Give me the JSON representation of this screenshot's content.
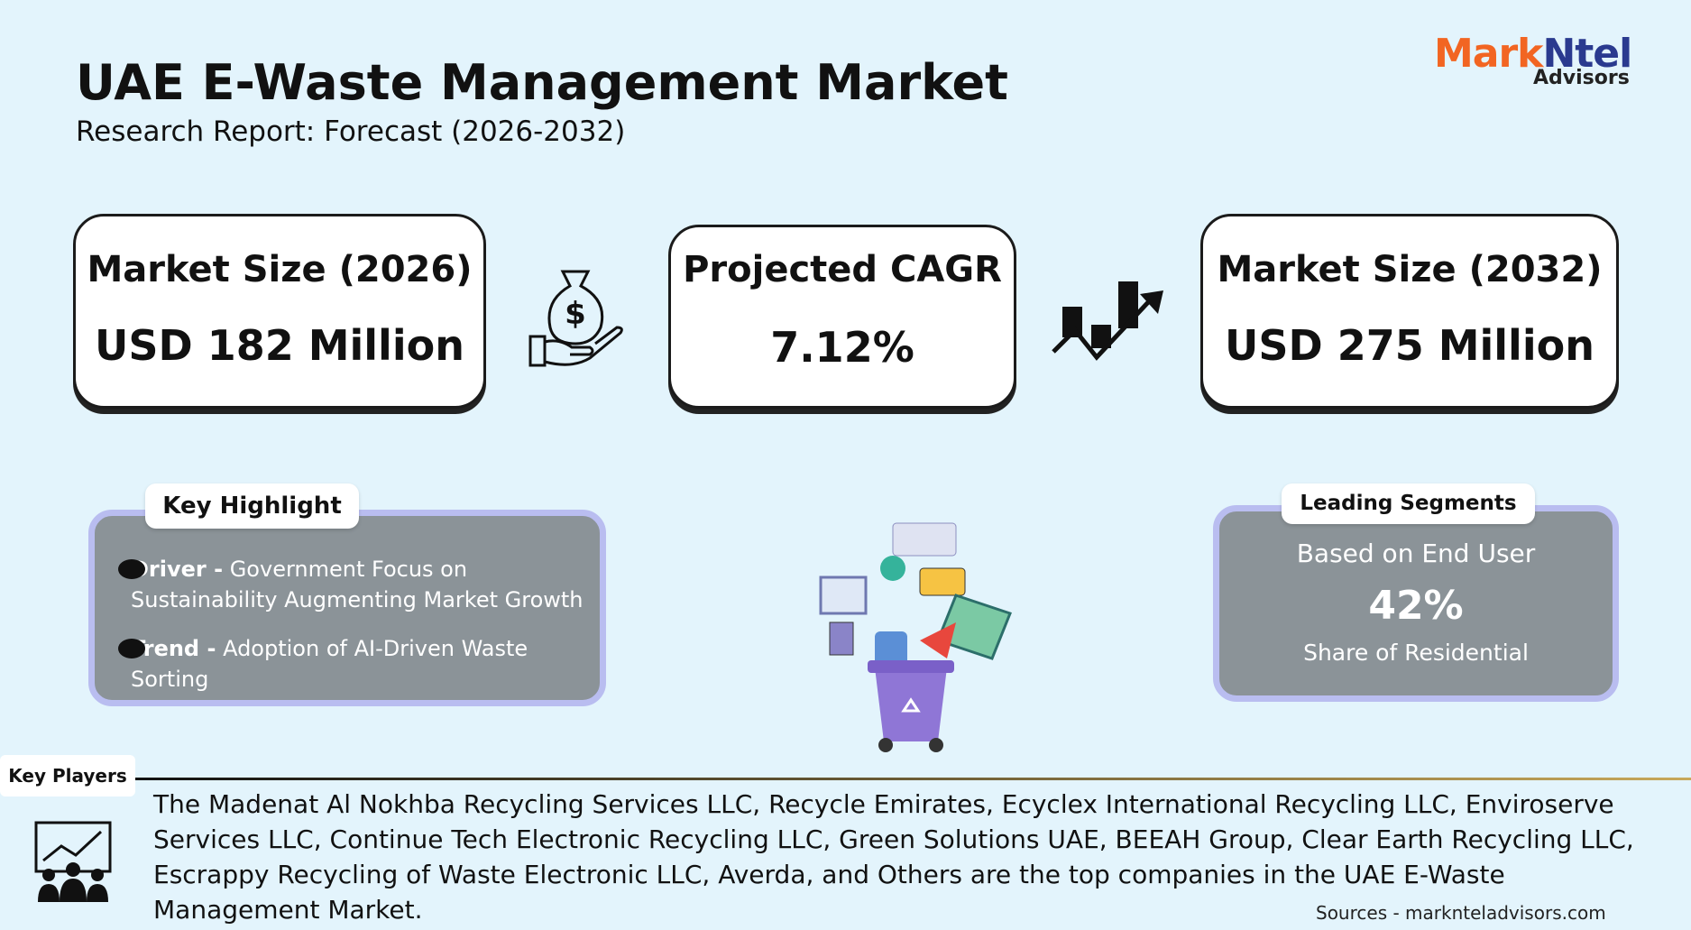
{
  "header": {
    "title": "UAE E-Waste Management Market",
    "subtitle": "Research Report: Forecast (2026-2032)"
  },
  "logo": {
    "brand_a": "Mark",
    "brand_b": "Ntel",
    "sub": "Advisors"
  },
  "stats": [
    {
      "label": "Market Size (2026)",
      "value": "USD 182 Million"
    },
    {
      "label": "Projected CAGR",
      "value": "7.12%"
    },
    {
      "label": "Market Size (2032)",
      "value": "USD 275 Million"
    }
  ],
  "key_highlight": {
    "title": "Key Highlight",
    "items": [
      {
        "label": "Driver -",
        "text": "Government Focus on Sustainability Augmenting Market Growth"
      },
      {
        "label": "Trend -",
        "text": "Adoption of AI-Driven Waste Sorting"
      }
    ]
  },
  "leading_segments": {
    "title": "Leading Segments",
    "basis": "Based on End User",
    "value": "42%",
    "caption": "Share of Residential"
  },
  "key_players": {
    "title": "Key Players",
    "text": "The Madenat Al Nokhba Recycling Services LLC, Recycle Emirates, Ecyclex International Recycling LLC, Enviroserve Services LLC, Continue Tech Electronic Recycling LLC, Green Solutions UAE, BEEAH Group, Clear Earth Recycling LLC, Escrappy Recycling of Waste Electronic LLC,  Averda, and Others are the top companies in the UAE E-Waste Management Market."
  },
  "sources": "Sources - marknteladvisors.com"
}
